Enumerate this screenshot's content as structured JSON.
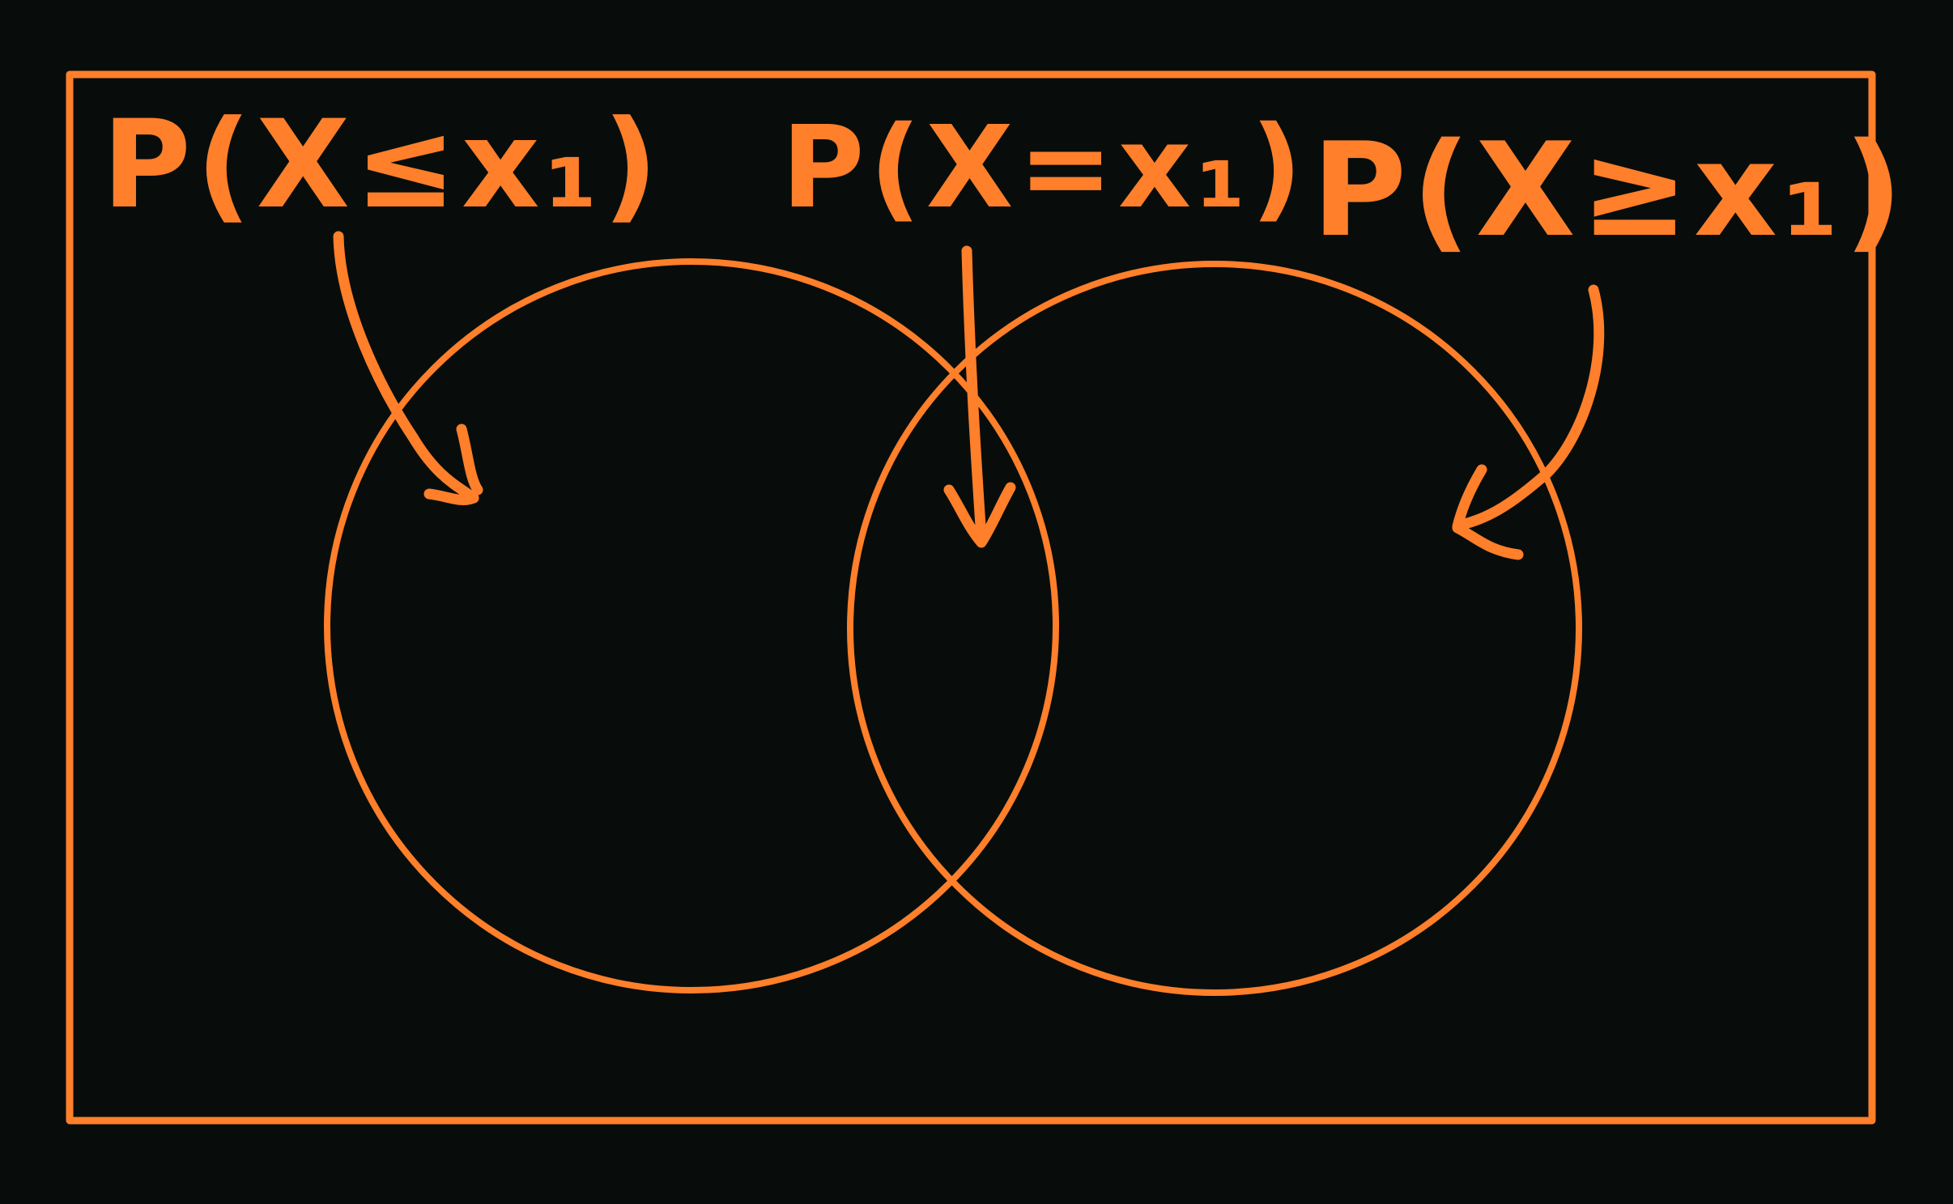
{
  "theme": {
    "background": "#080d0c",
    "stroke": "#ff7f2a"
  },
  "labels": {
    "left": "P(X≤x₁)",
    "middle": "P(X=x₁)",
    "right": "P(X≥x₁)"
  }
}
